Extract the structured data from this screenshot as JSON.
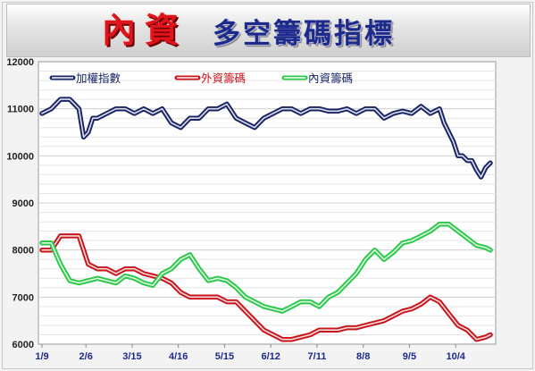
{
  "header": {
    "title_red": "內資",
    "title_blue": "多空籌碼指標"
  },
  "colors": {
    "index": "#1a2566",
    "foreign": "#c8141b",
    "domestic": "#2cc84a"
  },
  "chart_data": {
    "type": "line",
    "title": "內資 多空籌碼指標",
    "ylim": [
      6000,
      12000
    ],
    "y_ticks": [
      6000,
      7000,
      8000,
      9000,
      10000,
      11000,
      12000
    ],
    "y_tick_labels": [
      "6000",
      "7000",
      "8000",
      "9000",
      "10000",
      "11000",
      "12000"
    ],
    "xlim": [
      0,
      194
    ],
    "x_tick_positions": [
      0,
      19,
      39,
      59,
      79,
      99,
      119,
      139,
      159,
      179
    ],
    "x_tick_labels": [
      "1/9",
      "2/6",
      "3/15",
      "4/16",
      "5/15",
      "6/12",
      "7/11",
      "8/8",
      "9/5",
      "10/4"
    ],
    "legend": "top-left",
    "grid": "horizontal",
    "series": [
      {
        "name": "加權指數",
        "color_key": "index",
        "x": [
          0,
          4,
          8,
          12,
          16,
          18,
          20,
          22,
          24,
          28,
          32,
          36,
          40,
          44,
          48,
          52,
          56,
          60,
          64,
          68,
          72,
          76,
          80,
          84,
          88,
          92,
          96,
          100,
          104,
          108,
          112,
          116,
          120,
          124,
          128,
          132,
          136,
          140,
          144,
          148,
          152,
          156,
          160,
          164,
          168,
          172,
          174,
          176,
          178,
          180,
          182,
          184,
          186,
          188,
          190,
          192,
          194
        ],
        "values": [
          10900,
          11000,
          11200,
          11200,
          11000,
          10400,
          10500,
          10800,
          10800,
          10900,
          11000,
          11000,
          10900,
          11000,
          10900,
          11000,
          10700,
          10600,
          10800,
          10800,
          11000,
          11000,
          11100,
          10800,
          10700,
          10600,
          10800,
          10900,
          11000,
          11000,
          10900,
          11000,
          11000,
          10950,
          10950,
          11000,
          10900,
          11000,
          11000,
          10800,
          10900,
          10950,
          10900,
          11050,
          10900,
          11000,
          10700,
          10500,
          10300,
          10000,
          10000,
          9900,
          9900,
          9700,
          9550,
          9750,
          9850
        ]
      },
      {
        "name": "外資籌碼",
        "color_key": "foreign",
        "x": [
          0,
          4,
          8,
          12,
          16,
          20,
          24,
          28,
          32,
          36,
          40,
          44,
          48,
          52,
          56,
          60,
          64,
          68,
          72,
          76,
          80,
          84,
          88,
          92,
          96,
          100,
          104,
          108,
          112,
          116,
          120,
          124,
          128,
          132,
          136,
          140,
          144,
          148,
          152,
          156,
          160,
          164,
          168,
          172,
          176,
          180,
          184,
          188,
          192,
          194
        ],
        "values": [
          8000,
          8000,
          8300,
          8300,
          8300,
          7700,
          7600,
          7600,
          7500,
          7600,
          7600,
          7500,
          7450,
          7400,
          7300,
          7100,
          7000,
          7000,
          7000,
          7000,
          6900,
          6900,
          6700,
          6500,
          6300,
          6200,
          6100,
          6100,
          6150,
          6200,
          6300,
          6300,
          6300,
          6350,
          6350,
          6400,
          6450,
          6500,
          6600,
          6700,
          6750,
          6850,
          7000,
          6900,
          6650,
          6400,
          6300,
          6100,
          6150,
          6200
        ]
      },
      {
        "name": "內資籌碼",
        "color_key": "domestic",
        "x": [
          0,
          4,
          8,
          12,
          16,
          20,
          24,
          28,
          32,
          36,
          40,
          44,
          48,
          52,
          56,
          60,
          64,
          68,
          72,
          76,
          80,
          84,
          88,
          92,
          96,
          100,
          104,
          108,
          112,
          116,
          120,
          124,
          128,
          132,
          136,
          140,
          144,
          148,
          152,
          156,
          160,
          164,
          168,
          172,
          176,
          180,
          184,
          188,
          192,
          194
        ],
        "values": [
          8150,
          8150,
          7700,
          7350,
          7300,
          7350,
          7400,
          7350,
          7300,
          7450,
          7400,
          7300,
          7250,
          7500,
          7600,
          7800,
          7900,
          7600,
          7350,
          7400,
          7350,
          7200,
          7000,
          6900,
          6800,
          6750,
          6700,
          6800,
          6900,
          6900,
          6800,
          7000,
          7100,
          7300,
          7500,
          7800,
          8000,
          7800,
          7950,
          8150,
          8200,
          8300,
          8400,
          8550,
          8550,
          8400,
          8250,
          8100,
          8050,
          8000
        ]
      }
    ]
  }
}
